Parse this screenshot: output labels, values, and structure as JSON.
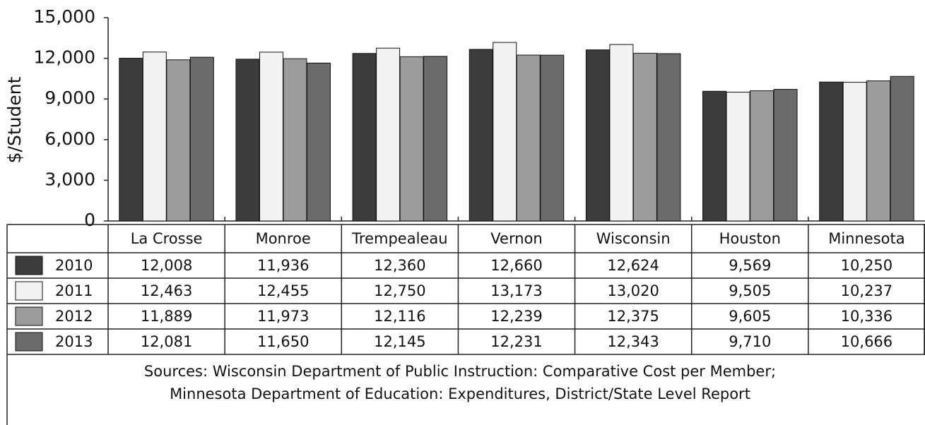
{
  "chart_data": {
    "type": "bar",
    "ylabel": "$/Student",
    "categories": [
      "La Crosse",
      "Monroe",
      "Trempealeau",
      "Vernon",
      "Wisconsin",
      "Houston",
      "Minnesota"
    ],
    "series": [
      {
        "name": "2010",
        "color": "#3c3c3c",
        "values": [
          12008,
          11936,
          12360,
          12660,
          12624,
          9569,
          10250
        ],
        "value_labels": [
          "12,008",
          "11,936",
          "12,360",
          "12,660",
          "12,624",
          "9,569",
          "10,250"
        ]
      },
      {
        "name": "2011",
        "color": "#f2f2f2",
        "values": [
          12463,
          12455,
          12750,
          13173,
          13020,
          9505,
          10237
        ],
        "value_labels": [
          "12,463",
          "12,455",
          "12,750",
          "13,173",
          "13,020",
          "9,505",
          "10,237"
        ]
      },
      {
        "name": "2012",
        "color": "#9c9c9c",
        "values": [
          11889,
          11973,
          12116,
          12239,
          12375,
          9605,
          10336
        ],
        "value_labels": [
          "11,889",
          "11,973",
          "12,116",
          "12,239",
          "12,375",
          "9,605",
          "10,336"
        ]
      },
      {
        "name": "2013",
        "color": "#6b6b6b",
        "values": [
          12081,
          11650,
          12145,
          12231,
          12343,
          9710,
          10666
        ],
        "value_labels": [
          "12,081",
          "11,650",
          "12,145",
          "12,231",
          "12,343",
          "9,710",
          "10,666"
        ]
      }
    ],
    "ylim": [
      0,
      15000
    ],
    "yticks": [
      0,
      {
        "value": 3000,
        "label": "3,000"
      },
      {
        "value": 6000,
        "label": "6,000"
      },
      {
        "value": 9000,
        "label": "9,000"
      },
      {
        "value": 12000,
        "label": "12,000"
      },
      {
        "value": 15000,
        "label": "15,000"
      }
    ],
    "grid": false,
    "source": [
      "Sources: Wisconsin Department of Public Instruction: Comparative Cost per Member;",
      "Minnesota Department of Education: Expenditures, District/State Level Report"
    ]
  }
}
